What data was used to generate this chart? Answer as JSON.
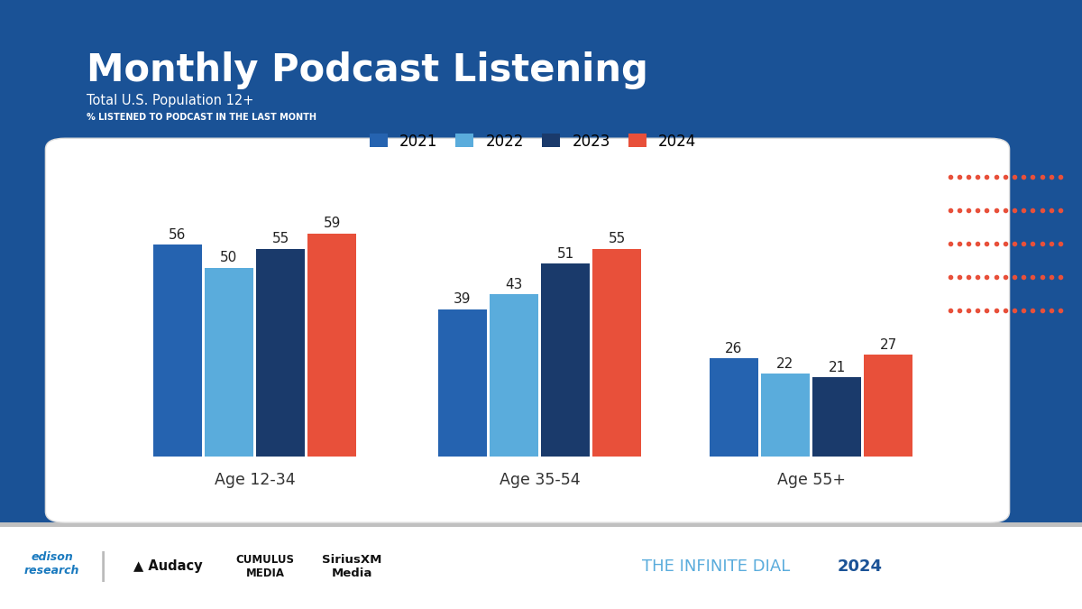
{
  "title": "Monthly Podcast Listening",
  "subtitle1": "Total U.S. Population 12+",
  "subtitle2": "% LISTENED TO PODCAST IN THE LAST MONTH",
  "categories": [
    "Age 12-34",
    "Age 35-54",
    "Age 55+"
  ],
  "years": [
    "2021",
    "2022",
    "2023",
    "2024"
  ],
  "values": {
    "Age 12-34": [
      56,
      50,
      55,
      59
    ],
    "Age 35-54": [
      39,
      43,
      51,
      55
    ],
    "Age 55+": [
      26,
      22,
      21,
      27
    ]
  },
  "bar_colors": [
    "#2563b0",
    "#5aacdc",
    "#1a3a6b",
    "#e8503a"
  ],
  "background_color": "#1a5296",
  "chart_bg": "#ffffff",
  "title_color": "#ffffff",
  "subtitle1_color": "#ffffff",
  "subtitle2_color": "#ffffff",
  "dot_color": "#e8503a",
  "ylim": [
    0,
    70
  ],
  "bar_width": 0.18,
  "footer_bg": "#ffffff",
  "footer_line_color": "#c0c0c0"
}
